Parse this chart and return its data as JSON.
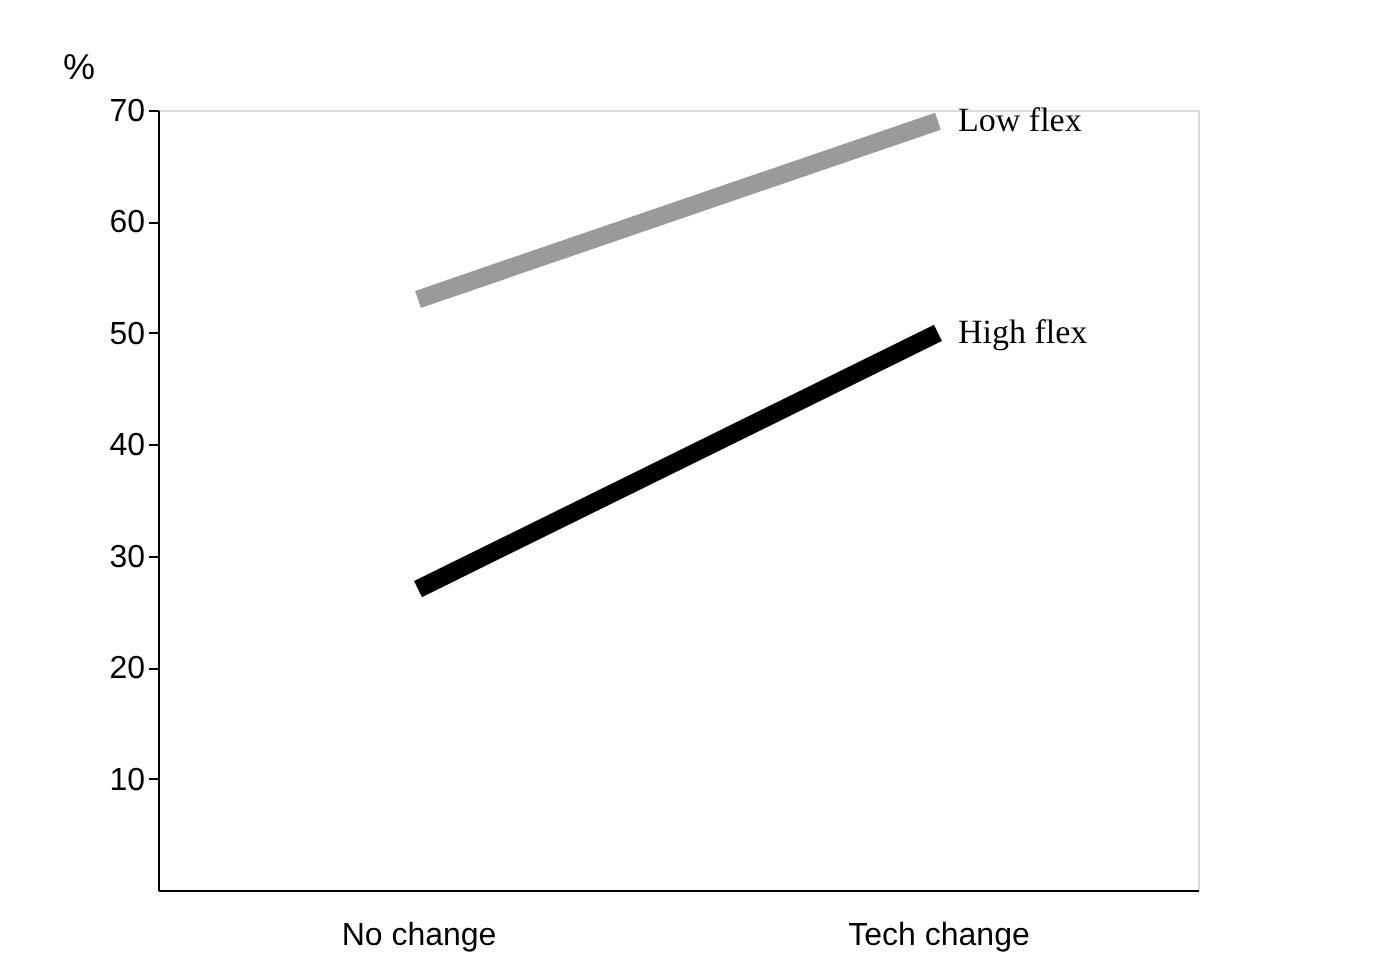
{
  "chart_data": {
    "type": "line",
    "ylabel": "%",
    "categories": [
      "No change",
      "Tech change"
    ],
    "series": [
      {
        "name": "Low flex",
        "color": "#9a9a9a",
        "values": [
          53,
          69
        ]
      },
      {
        "name": "High flex",
        "color": "#000000",
        "values": [
          27,
          50
        ]
      }
    ],
    "ylim": [
      0,
      70
    ],
    "yticks": [
      10,
      20,
      30,
      40,
      50,
      60,
      70
    ],
    "grid": false,
    "legend": false,
    "marker": "none",
    "line_style": "solid"
  }
}
